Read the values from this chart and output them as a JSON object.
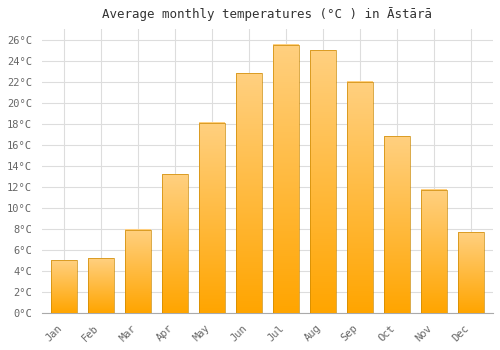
{
  "title": "Average monthly temperatures (°C ) in Āstārā",
  "months": [
    "Jan",
    "Feb",
    "Mar",
    "Apr",
    "May",
    "Jun",
    "Jul",
    "Aug",
    "Sep",
    "Oct",
    "Nov",
    "Dec"
  ],
  "values": [
    5.0,
    5.2,
    7.9,
    13.2,
    18.1,
    22.8,
    25.5,
    25.0,
    22.0,
    16.8,
    11.7,
    7.7
  ],
  "bar_color_main": "#FFA500",
  "bar_color_light": "#FFD080",
  "background_color": "#FFFFFF",
  "grid_color": "#DDDDDD",
  "ylim": [
    0,
    27
  ],
  "yticks": [
    0,
    2,
    4,
    6,
    8,
    10,
    12,
    14,
    16,
    18,
    20,
    22,
    24,
    26
  ],
  "title_fontsize": 9,
  "tick_fontsize": 7.5,
  "font_family": "monospace"
}
